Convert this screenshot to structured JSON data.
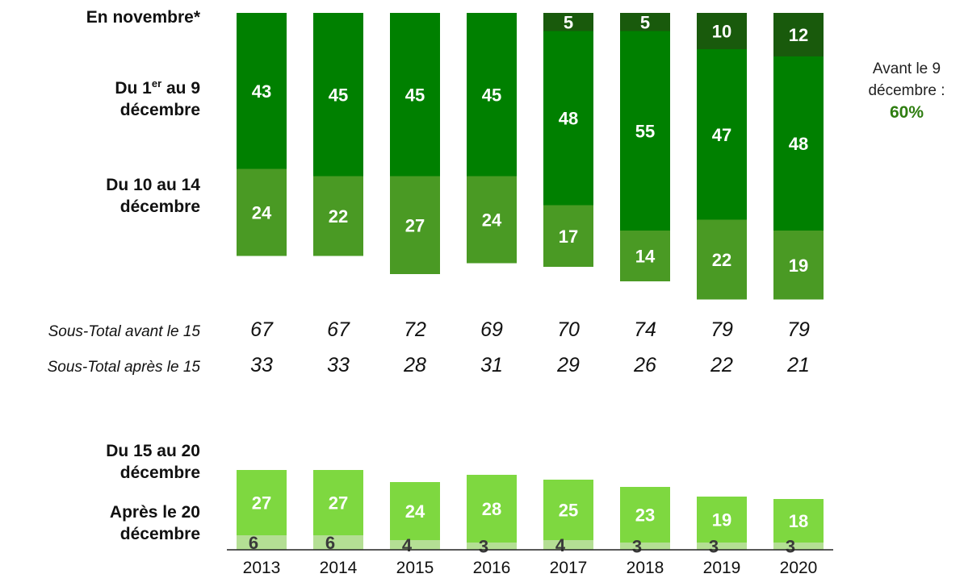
{
  "chart_data": [
    {
      "type": "bar",
      "stacked": true,
      "categories": [
        "2013",
        "2014",
        "2015",
        "2016",
        "2017",
        "2018",
        "2019",
        "2020"
      ],
      "series": [
        {
          "name": "En novembre*",
          "values": [
            null,
            null,
            null,
            null,
            5,
            5,
            10,
            12
          ],
          "color": "#195a0c"
        },
        {
          "name": "Du 1er au 9 décembre",
          "values": [
            43,
            45,
            45,
            45,
            48,
            55,
            47,
            48
          ],
          "color": "#008000"
        },
        {
          "name": "Du 10 au 14 décembre",
          "values": [
            24,
            22,
            27,
            24,
            17,
            14,
            22,
            19
          ],
          "color": "#4a9a24"
        }
      ]
    },
    {
      "type": "bar",
      "stacked": true,
      "categories": [
        "2013",
        "2014",
        "2015",
        "2016",
        "2017",
        "2018",
        "2019",
        "2020"
      ],
      "series": [
        {
          "name": "Du 15 au 20 décembre",
          "values": [
            27,
            27,
            24,
            28,
            25,
            23,
            19,
            18
          ],
          "color": "#7ed840"
        },
        {
          "name": "Après le 20 décembre",
          "values": [
            6,
            6,
            4,
            3,
            4,
            3,
            3,
            3
          ],
          "color": "#b4df94"
        }
      ]
    }
  ],
  "labels": {
    "nov_row": "En novembre*",
    "d1_pre": "Du 1",
    "d1_sup": "er",
    "d1_post": " au 9",
    "d1_line2": "décembre",
    "d10_line1": "Du 10 au 14",
    "d10_line2": "décembre",
    "d15_line1": "Du 15 au 20",
    "d15_line2": "décembre",
    "after_line1": "Après  le 20",
    "after_line2": "décembre",
    "subtotal_before": "Sous-Total avant le 15",
    "subtotal_after": "Sous-Total après le 15",
    "note_line1": "Avant le 9",
    "note_line2": "décembre :",
    "note_value": "60%"
  },
  "subtotals": {
    "before": [
      "67",
      "67",
      "72",
      "69",
      "70",
      "74",
      "79",
      "79"
    ],
    "after": [
      "33",
      "33",
      "28",
      "31",
      "29",
      "26",
      "22",
      "21"
    ]
  },
  "colors": {
    "note_accent": "#2e7d10",
    "label_light": "#ffffff",
    "label_dark": "#3a3a3a",
    "axis": "#222222"
  }
}
